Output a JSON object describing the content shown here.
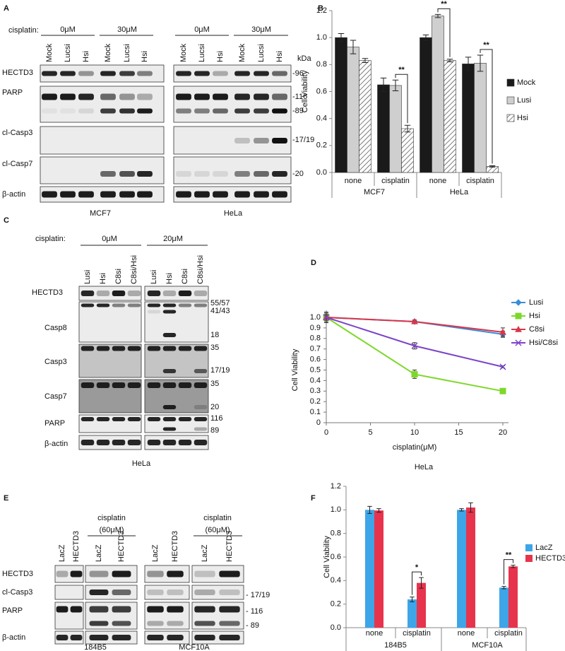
{
  "blots": [
    {
      "label": "A",
      "cisplatin_label": "cisplatin:",
      "doses": [
        "0μM",
        "30μM",
        "0μM",
        "30μM"
      ],
      "lanes": [
        "Mock",
        "Lucsi",
        "Hsi",
        "Mock",
        "Lucsi",
        "Hsi",
        "Mock",
        "Lucsi",
        "Hsi",
        "Mock",
        "Lucsi",
        "Hsi"
      ],
      "kda": "kDa",
      "rows": [
        "HECTD3",
        "PARP",
        "cl-Casp3",
        "cl-Casp7",
        "β-actin"
      ],
      "markers": [
        "-96",
        "-116",
        "-89",
        "-17/19",
        "-20"
      ],
      "cells": [
        "MCF7",
        "HeLa"
      ]
    },
    {
      "label": "C",
      "cisplatin_label": "cisplatin:",
      "doses": [
        "0μM",
        "20μM"
      ],
      "lanes": [
        "Lusi",
        "Hsi",
        "C8si",
        "C8si/Hsi",
        "Lusi",
        "Hsi",
        "C8si",
        "C8si/Hsi"
      ],
      "rows": [
        "HECTD3",
        "Casp8",
        "Casp3",
        "Casp7",
        "PARP",
        "β-actin"
      ],
      "markers": [
        "55/57",
        "41/43",
        "18",
        "35",
        "17/19",
        "35",
        "20",
        "116",
        "89"
      ],
      "cells": [
        "HeLa"
      ]
    },
    {
      "label": "E",
      "treatments": [
        [
          "cisplatin",
          "(60μM)"
        ],
        [
          "cisplatin",
          "(60μM)"
        ]
      ],
      "lanes": [
        "LacZ",
        "HECTD3",
        "LacZ",
        "HECTD3",
        "LacZ",
        "HECTD3",
        "LacZ",
        "HECTD3"
      ],
      "rows": [
        "HECTD3",
        "cl-Casp3",
        "PARP",
        "β-actin"
      ],
      "markers": [
        "- 17/19",
        "- 116",
        "- 89"
      ],
      "cells": [
        "184B5",
        "MCF10A"
      ]
    }
  ],
  "chart_data": [
    {
      "label": "B",
      "type": "bar",
      "categories": [
        "none",
        "cisplatin",
        "none",
        "cisplatin"
      ],
      "groups": [
        "MCF7",
        "HeLa"
      ],
      "y_label": "Cell Viability",
      "ylim": [
        0,
        1.2
      ],
      "yticks": [
        {
          "value": 0,
          "label": "0.0"
        },
        0.2,
        0.4,
        0.6,
        0.8,
        {
          "value": 1,
          "label": "1.0"
        },
        1.2
      ],
      "series": [
        {
          "name": "Mock",
          "color": "#1a1a1a",
          "values": [
            1.0,
            0.65,
            1.0,
            0.805
          ],
          "errors": [
            0.03,
            0.05,
            0.02,
            0.05
          ]
        },
        {
          "name": "Lusi",
          "color": "#cfcfcf",
          "values": [
            0.93,
            0.645,
            1.16,
            0.81
          ],
          "errors": [
            0.05,
            0.04,
            0.012,
            0.06
          ]
        },
        {
          "name": "Hsi",
          "color": "#ffffff",
          "pattern": "diagonal",
          "values": [
            0.83,
            0.325,
            0.83,
            0.045
          ],
          "errors": [
            0.015,
            0.025,
            0.01,
            0.005
          ]
        }
      ],
      "annotations": [
        "**",
        "**",
        "**"
      ],
      "legend": "right"
    },
    {
      "label": "D",
      "type": "line",
      "title": "HeLa",
      "x_label": "cisplatin(μM)",
      "y_label": "Cell Viability",
      "x": [
        0,
        10,
        20
      ],
      "xlim": [
        0,
        20
      ],
      "xticks": [
        0,
        5,
        10,
        15,
        20
      ],
      "ylim": [
        0,
        1
      ],
      "yticks": [
        0,
        0.1,
        0.2,
        0.3,
        0.4,
        0.5,
        0.6,
        0.7,
        0.8,
        0.9,
        {
          "value": 1,
          "label": "1.0"
        }
      ],
      "series": [
        {
          "name": "Lusi",
          "color": "#3a8ed8",
          "marker": "diamond",
          "values": [
            1.0,
            0.96,
            0.84
          ],
          "errors": [
            0.03,
            0.015,
            0.03
          ]
        },
        {
          "name": "Hsi",
          "color": "#7dd82a",
          "marker": "square",
          "values": [
            1.0,
            0.46,
            0.3
          ],
          "errors": [
            0.05,
            0.04,
            0.02
          ]
        },
        {
          "name": "C8si",
          "color": "#d8374a",
          "marker": "triangle",
          "values": [
            1.0,
            0.96,
            0.86
          ],
          "errors": [
            0.02,
            0.015,
            0.04
          ]
        },
        {
          "name": "Hsi/C8si",
          "color": "#7b44c8",
          "marker": "cross",
          "values": [
            1.0,
            0.73,
            0.53
          ],
          "errors": [
            0.04,
            0.03,
            0.01
          ]
        }
      ],
      "legend": "right"
    },
    {
      "label": "F",
      "type": "bar",
      "categories": [
        "none",
        "cisplatin",
        "none",
        "cisplatin"
      ],
      "groups": [
        "184B5",
        "MCF10A"
      ],
      "y_label": "Cell Viability",
      "ylim": [
        0,
        1.2
      ],
      "yticks": [
        {
          "value": 0,
          "label": "0.0"
        },
        0.2,
        0.4,
        0.6,
        0.8,
        {
          "value": 1,
          "label": "1.0"
        },
        1.2
      ],
      "series": [
        {
          "name": "LacZ",
          "color": "#3da5e8",
          "values": [
            1.0,
            0.24,
            1.0,
            0.34
          ],
          "errors": [
            0.03,
            0.02,
            0.01,
            0.01
          ]
        },
        {
          "name": "HECTD3",
          "color": "#e8334d",
          "values": [
            0.995,
            0.38,
            1.02,
            0.52
          ],
          "errors": [
            0.015,
            0.045,
            0.04,
            0.01
          ]
        }
      ],
      "annotations": [
        "*",
        "**"
      ],
      "legend": "right"
    }
  ]
}
